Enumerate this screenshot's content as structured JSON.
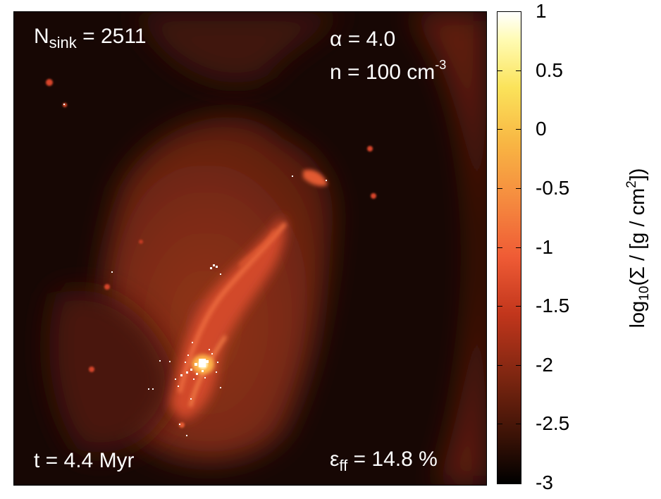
{
  "overlays": {
    "sink_prefix": "N",
    "sink_sub": "sink",
    "sink_value": "= 2511",
    "alpha_symbol": "α",
    "alpha_value": "= 4.0",
    "density_text": "n = 100 cm",
    "density_exponent": "-3",
    "time_text": "t = 4.4 Myr",
    "eff_symbol": "ε",
    "eff_sub": "ff",
    "eff_value": "= 14.8 %"
  },
  "colorbar": {
    "title_prefix": "log",
    "title_sub": "10",
    "title_main": "(Σ / [g / cm",
    "title_sup": "2",
    "title_end": "])",
    "ticks": [
      "1",
      "0.5",
      "0",
      "-0.5",
      "-1",
      "-1.5",
      "-2",
      "-2.5",
      "-3"
    ],
    "range": [
      -3,
      1
    ],
    "colors": [
      "#000000",
      "#7a2510",
      "#ef5b35",
      "#f8b543",
      "#fffbb2",
      "#ffffff"
    ]
  }
}
